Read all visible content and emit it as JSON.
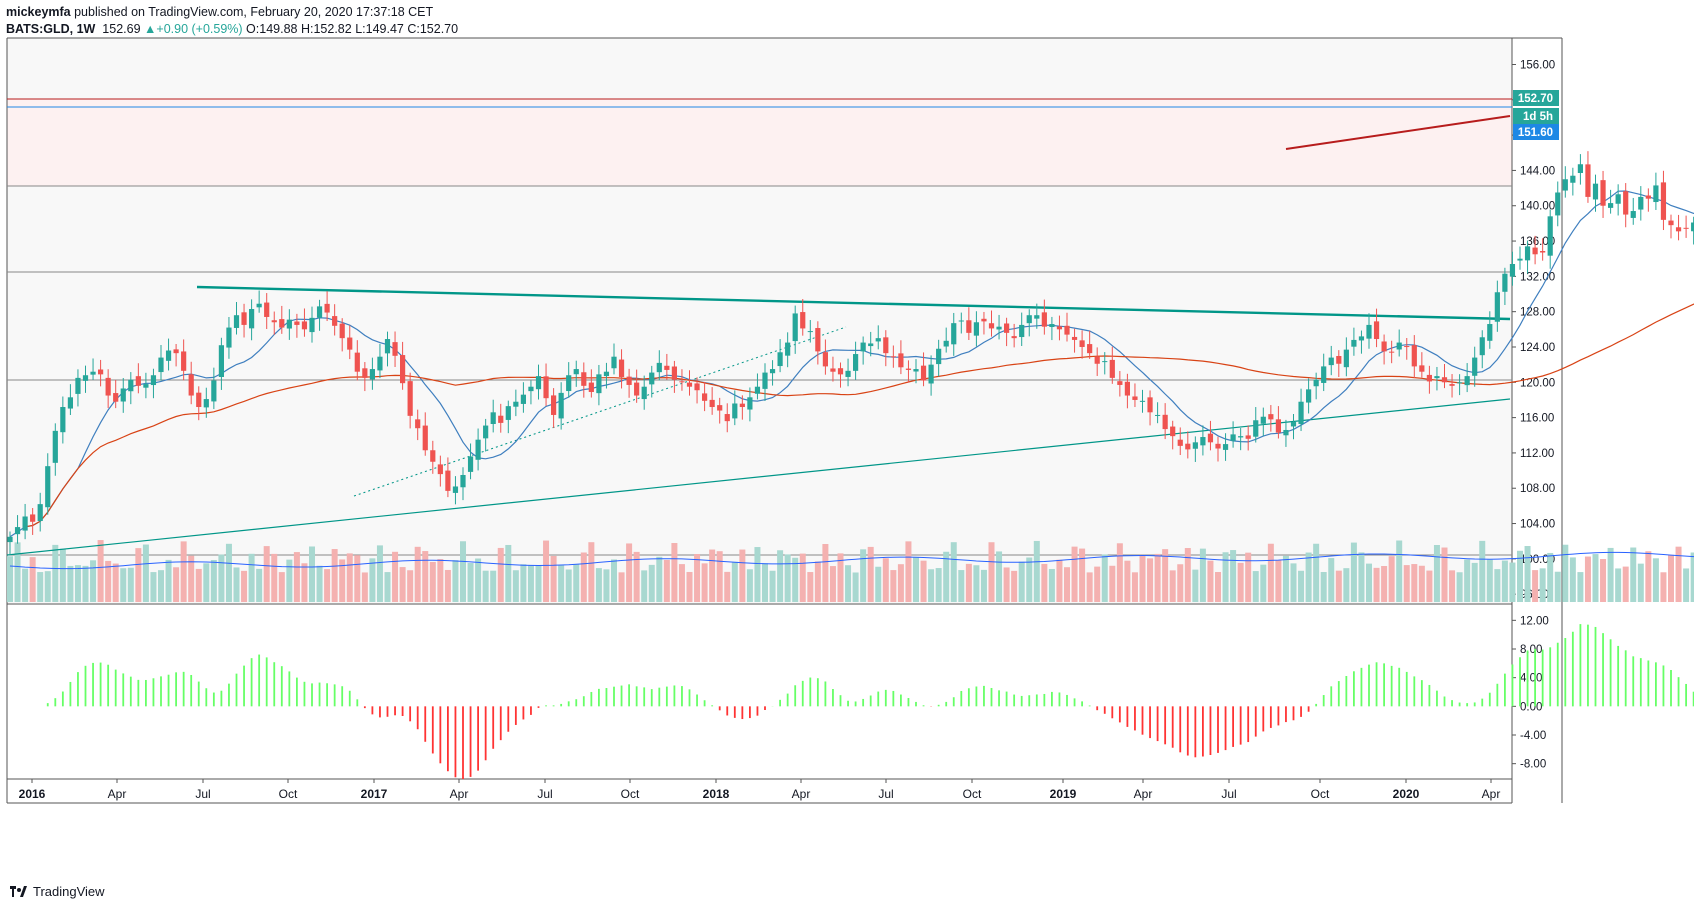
{
  "header": {
    "publisher": "mickeymfa",
    "published_text": "published on TradingView.com, February 20, 2020 17:37:18 CET",
    "symbol": "BATS:GLD, 1W",
    "last": "152.69",
    "change": "+0.90 (+0.59%)",
    "open": "O:149.88",
    "high": "H:152.82",
    "low": "L:149.47",
    "close": "C:152.70"
  },
  "footer": {
    "brand": "TradingView"
  },
  "price_labels": {
    "last": "152.70",
    "countdown": "1d 5h",
    "level": "151.60"
  },
  "colors": {
    "up": "#26a69a",
    "down": "#ef5350",
    "sma_fast": "#2962ff",
    "sma_slow": "#d84315",
    "trend": "#009688",
    "resist": "#b71c1c",
    "hist_up": "#66ff66",
    "hist_down": "#ff3333"
  },
  "chart_data": {
    "type": "candlestick",
    "interval": "1W",
    "price_axis": {
      "ticks": [
        "156.00",
        "152.00",
        "148.00",
        "144.00",
        "140.00",
        "136.00",
        "132.00",
        "128.00",
        "124.00",
        "120.00",
        "116.00",
        "112.00",
        "108.00",
        "104.00",
        "100.00",
        "96.00"
      ],
      "range": [
        95,
        159
      ]
    },
    "osc_axis": {
      "ticks": [
        "12.00",
        "8.00",
        "4.00",
        "0.00",
        "-4.00",
        "-8.00"
      ],
      "range": [
        -10,
        14
      ]
    },
    "time_axis": [
      "2016",
      "Apr",
      "Jul",
      "Oct",
      "2017",
      "Apr",
      "Jul",
      "Oct",
      "2018",
      "Apr",
      "Jul",
      "Oct",
      "2019",
      "Apr",
      "Jul",
      "Oct",
      "2020",
      "Apr"
    ],
    "closes": [
      102.5,
      103.6,
      104.8,
      104.2,
      106.2,
      110.5,
      114.5,
      117.2,
      118.3,
      120.5,
      120.8,
      121.2,
      120.9,
      118.5,
      117.8,
      119.3,
      120.3,
      119.6,
      119.8,
      120.8,
      122.8,
      123.6,
      123.3,
      121.3,
      118.5,
      117.2,
      118.1,
      120.2,
      124.2,
      126.2,
      127.6,
      126.5,
      128.3,
      128.9,
      127.4,
      126.8,
      126.2,
      127.1,
      126.5,
      126.0,
      127.3,
      128.6,
      127.9,
      126.4,
      125.0,
      123.7,
      121.2,
      120.5,
      121.5,
      122.9,
      124.9,
      123.0,
      119.9,
      116.2,
      114.8,
      112.3,
      111.0,
      109.6,
      107.7,
      108.2,
      109.5,
      111.6,
      113.5,
      115.1,
      116.6,
      115.4,
      117.3,
      117.8,
      118.6,
      119.5,
      120.7,
      118.2,
      116.3,
      118.8,
      120.8,
      121.5,
      119.6,
      118.9,
      120.9,
      121.2,
      122.9,
      120.6,
      119.7,
      118.5,
      119.5,
      121.1,
      122.2,
      121.4,
      120.3,
      120.1,
      119.5,
      119.1,
      117.9,
      117.2,
      116.8,
      115.6,
      117.6,
      117.2,
      118.3,
      119.5,
      121.1,
      121.5,
      123.4,
      124.5,
      127.8,
      126.1,
      125.8,
      123.5,
      121.8,
      121.2,
      120.9,
      121.3,
      123.2,
      124.5,
      124.4,
      125.0,
      123.3,
      122.9,
      121.7,
      121.4,
      121.5,
      120.2,
      122.0,
      123.8,
      124.7,
      126.7,
      127.0,
      125.6,
      126.8,
      126.9,
      126.1,
      126.3,
      125.6,
      125.0,
      126.5,
      127.6,
      127.6,
      126.3,
      126.6,
      126.0,
      125.4,
      124.8,
      124.0,
      123.3,
      122.1,
      122.4,
      120.5,
      119.7,
      118.5,
      118.0,
      117.9,
      116.6,
      116.3,
      114.7,
      113.9,
      112.8,
      112.4,
      113.2,
      113.8,
      113.2,
      112.5,
      113.0,
      114.1,
      113.9,
      113.6,
      115.7,
      116.1,
      115.8,
      114.3,
      114.6,
      115.5,
      117.8,
      119.2,
      120.3,
      121.8,
      122.8,
      122.1,
      123.7,
      124.8,
      125.2,
      126.5,
      124.9,
      123.5,
      123.4,
      124.5,
      124.0,
      121.8,
      121.2,
      120.1,
      120.7,
      120.0,
      119.6,
      120.0,
      120.7,
      122.8,
      125.1,
      126.6,
      130.2,
      132.3,
      133.4,
      134.0,
      135.4,
      134.5,
      134.7,
      138.8,
      141.5,
      143.0,
      143.4,
      144.7,
      141.0,
      142.5,
      140.0,
      140.3,
      141.3,
      139.0,
      139.4,
      141.0,
      140.8,
      142.3,
      138.4,
      137.8,
      137.1,
      137.4,
      138.1,
      139.2,
      140.3,
      144.1,
      147.3,
      146.5,
      146.3,
      148.6,
      148.9,
      147.7,
      149.1,
      152.7
    ],
    "resistance_label": "151.60"
  }
}
